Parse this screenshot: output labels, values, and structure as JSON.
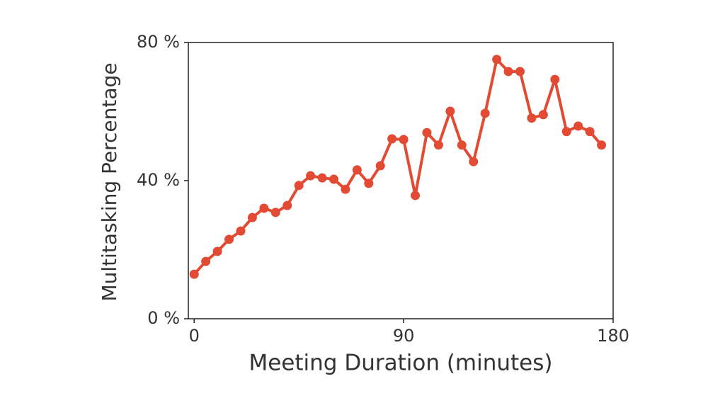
{
  "chart_data": {
    "type": "line",
    "x_label": "Meeting Duration (minutes)",
    "y_label": "Multitasking Percentage",
    "x": [
      0,
      5,
      10,
      15,
      20,
      25,
      30,
      35,
      40,
      45,
      50,
      55,
      60,
      65,
      70,
      75,
      80,
      85,
      90,
      95,
      100,
      105,
      110,
      115,
      120,
      125,
      130,
      135,
      140,
      145,
      150,
      155,
      160,
      165,
      170,
      175
    ],
    "series": [
      {
        "color": "#e24a33",
        "values": [
          12.9,
          16.6,
          19.5,
          23.0,
          25.4,
          29.3,
          32.0,
          30.8,
          32.8,
          38.6,
          41.4,
          40.8,
          40.4,
          37.5,
          43.1,
          39.2,
          44.3,
          52.1,
          51.9,
          35.7,
          53.9,
          50.3,
          60.1,
          50.3,
          45.5,
          59.5,
          75.1,
          71.6,
          71.6,
          58.1,
          59.1,
          69.3,
          54.2,
          55.8,
          54.2,
          50.3
        ]
      }
    ],
    "xlim": [
      -2.5,
      180
    ],
    "xticks": [
      0,
      90,
      180
    ],
    "ylim": [
      0,
      80
    ],
    "yticks": [
      {
        "value": 0,
        "label": "0 %"
      },
      {
        "value": 40,
        "label": "40 %"
      },
      {
        "value": 80,
        "label": "80 %"
      }
    ],
    "grid": false
  }
}
